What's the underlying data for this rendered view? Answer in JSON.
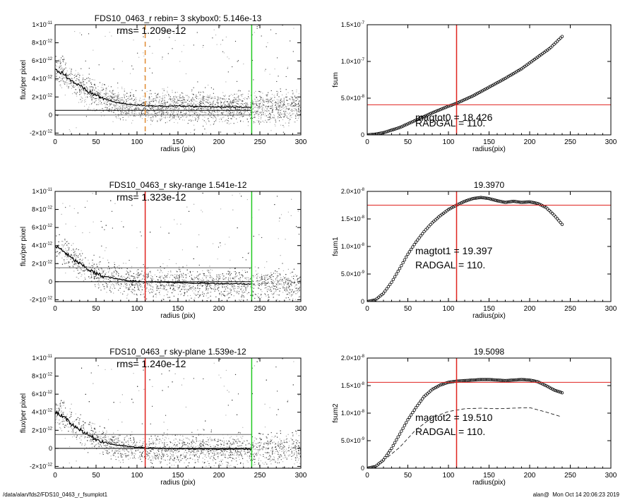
{
  "footer": {
    "path": "/data/alan/fds2/FDS10_0463_r_fsumplot1",
    "user": "alan@",
    "timestamp": "Mon Oct 14 20:06:23 2019"
  },
  "colors": {
    "background": "#ffffff",
    "points_dark": "#333333",
    "points_light": "#aaaaaa",
    "profile": "#000000",
    "red_line": "#e0231f",
    "green_line": "#22c922",
    "orange_dashed": "#e08a30"
  },
  "chart_data": [
    {
      "id": "profile-1",
      "type": "scatter",
      "title": "FDS10_0463_r rebin= 3    skybox0:  5.146e-13",
      "annotation": "rms= 1.209e-12",
      "xlabel": "radius (pix)",
      "ylabel": "flux/per pixel",
      "xlim": [
        0,
        300
      ],
      "ylim": [
        -2.2e-12,
        1e-11
      ],
      "xticks": [
        0,
        50,
        100,
        150,
        200,
        250,
        300
      ],
      "yticks": [
        -2e-12,
        0,
        2e-12,
        4e-12,
        6e-12,
        8e-12,
        1e-11
      ],
      "ytick_labels": [
        [
          "-2",
          "×10",
          "-12"
        ],
        [
          "0"
        ],
        [
          "2",
          "×10",
          "-12"
        ],
        [
          "4",
          "×10",
          "-12"
        ],
        [
          "6",
          "×10",
          "-12"
        ],
        [
          "8",
          "×10",
          "-12"
        ],
        [
          "1",
          "×10",
          "-11"
        ]
      ],
      "profile": {
        "x": [
          0,
          5,
          10,
          20,
          30,
          40,
          50,
          60,
          70,
          80,
          90,
          100,
          110,
          130,
          150,
          170,
          200,
          240
        ],
        "y": [
          5e-12,
          4.8e-12,
          4.6e-12,
          3.8e-12,
          3.2e-12,
          2.6e-12,
          2.2e-12,
          1.8e-12,
          1.5e-12,
          1.3e-12,
          1.2e-12,
          1.1e-12,
          1.05e-12,
          1e-12,
          1e-12,
          9.5e-13,
          9e-13,
          8.5e-13
        ]
      },
      "hlines": [
        {
          "y": 0,
          "color": "gray"
        },
        {
          "y": 5.146e-13,
          "color": "black"
        }
      ],
      "vlines": [
        {
          "x": 110,
          "style": "dashed",
          "color": "orange"
        },
        {
          "x": 240,
          "style": "solid",
          "color": "green"
        }
      ],
      "scatter_center": 1e-12,
      "scatter_spread": 1.6e-12
    },
    {
      "id": "fsum",
      "type": "scatter",
      "title": "",
      "xlabel": "radius(pix)",
      "ylabel": "fsum",
      "xlim": [
        0,
        300
      ],
      "ylim": [
        0,
        1.5e-07
      ],
      "xticks": [
        0,
        50,
        100,
        150,
        200,
        250,
        300
      ],
      "yticks": [
        0,
        5e-08,
        1e-07,
        1.5e-07
      ],
      "ytick_labels": [
        [
          "0"
        ],
        [
          "5.0",
          "×10",
          "-8"
        ],
        [
          "1.0",
          "×10",
          "-7"
        ],
        [
          "1.5",
          "×10",
          "-7"
        ]
      ],
      "curve": {
        "x": [
          0,
          10,
          20,
          40,
          60,
          80,
          100,
          110,
          130,
          150,
          170,
          190,
          210,
          225,
          240
        ],
        "y": [
          0,
          1e-09,
          3e-09,
          1e-08,
          2e-08,
          3e-08,
          3.9e-08,
          4.3e-08,
          5.3e-08,
          6.5e-08,
          7.7e-08,
          9e-08,
          1.06e-07,
          1.18e-07,
          1.34e-07
        ]
      },
      "hlines": [
        {
          "y": 4.1e-08,
          "color": "red"
        }
      ],
      "vlines": [
        {
          "x": 110,
          "style": "solid",
          "color": "red"
        }
      ],
      "annotations": [
        "magtot0 =  18.426",
        "RADGAL =    110."
      ]
    },
    {
      "id": "profile-2",
      "type": "scatter",
      "title": "FDS10_0463_r sky-range  1.541e-12",
      "annotation": "rms= 1.323e-12",
      "xlabel": "radius (pix)",
      "ylabel": "flux/per pixel",
      "xlim": [
        0,
        300
      ],
      "ylim": [
        -2.2e-12,
        1e-11
      ],
      "xticks": [
        0,
        50,
        100,
        150,
        200,
        250,
        300
      ],
      "yticks": [
        -2e-12,
        0,
        2e-12,
        4e-12,
        6e-12,
        8e-12,
        1e-11
      ],
      "ytick_labels": [
        [
          "-2",
          "×10",
          "-12"
        ],
        [
          "0"
        ],
        [
          "2",
          "×10",
          "-12"
        ],
        [
          "4",
          "×10",
          "-12"
        ],
        [
          "6",
          "×10",
          "-12"
        ],
        [
          "8",
          "×10",
          "-12"
        ],
        [
          "1",
          "×10",
          "-11"
        ]
      ],
      "profile": {
        "x": [
          0,
          5,
          10,
          20,
          30,
          40,
          50,
          60,
          70,
          80,
          90,
          100,
          110,
          130,
          150,
          170,
          200,
          240
        ],
        "y": [
          3.9e-12,
          3.7e-12,
          3.4e-12,
          2.6e-12,
          2e-12,
          1.4e-12,
          9e-13,
          6e-13,
          4e-13,
          2.5e-13,
          1e-13,
          5e-14,
          0.0,
          -5e-14,
          -1e-13,
          -1.5e-13,
          -2e-13,
          -2.5e-13
        ]
      },
      "hlines": [
        {
          "y": 0,
          "color": "black"
        },
        {
          "y": 1.541e-12,
          "color": "gray"
        }
      ],
      "vlines": [
        {
          "x": 110,
          "style": "solid",
          "color": "red"
        },
        {
          "x": 240,
          "style": "solid",
          "color": "green"
        }
      ],
      "scatter_center": 0.0,
      "scatter_spread": 1.6e-12
    },
    {
      "id": "fsum1",
      "type": "scatter",
      "title": "19.3970",
      "xlabel": "radius(pix)",
      "ylabel": "fsum1",
      "xlim": [
        0,
        300
      ],
      "ylim": [
        0,
        2e-08
      ],
      "xticks": [
        0,
        50,
        100,
        150,
        200,
        250,
        300
      ],
      "yticks": [
        0,
        5e-09,
        1e-08,
        1.5e-08,
        2e-08
      ],
      "ytick_labels": [
        [
          "0"
        ],
        [
          "5.0",
          "×10",
          "-9"
        ],
        [
          "1.0",
          "×10",
          "-8"
        ],
        [
          "1.5",
          "×10",
          "-8"
        ],
        [
          "2.0",
          "×10",
          "-8"
        ]
      ],
      "curve": {
        "x": [
          0,
          10,
          20,
          30,
          40,
          50,
          60,
          70,
          80,
          90,
          100,
          110,
          120,
          130,
          140,
          150,
          160,
          170,
          180,
          190,
          200,
          210,
          220,
          230,
          240
        ],
        "y": [
          0,
          3e-10,
          1.5e-09,
          3.5e-09,
          6e-09,
          8.6e-09,
          1.08e-08,
          1.27e-08,
          1.43e-08,
          1.56e-08,
          1.67e-08,
          1.75e-08,
          1.82e-08,
          1.87e-08,
          1.89e-08,
          1.87e-08,
          1.83e-08,
          1.8e-08,
          1.82e-08,
          1.8e-08,
          1.81e-08,
          1.78e-08,
          1.71e-08,
          1.57e-08,
          1.4e-08
        ]
      },
      "hlines": [
        {
          "y": 1.75e-08,
          "color": "red"
        }
      ],
      "vlines": [
        {
          "x": 110,
          "style": "solid",
          "color": "red"
        }
      ],
      "annotations": [
        "magtot1 =  19.397",
        "RADGAL =    110."
      ]
    },
    {
      "id": "profile-3",
      "type": "scatter",
      "title": "FDS10_0463_r sky-plane  1.539e-12",
      "annotation": "rms= 1.240e-12",
      "xlabel": "radius (pix)",
      "ylabel": "flux/per pixel",
      "xlim": [
        0,
        300
      ],
      "ylim": [
        -2.2e-12,
        1e-11
      ],
      "xticks": [
        0,
        50,
        100,
        150,
        200,
        250,
        300
      ],
      "yticks": [
        -2e-12,
        0,
        2e-12,
        4e-12,
        6e-12,
        8e-12,
        1e-11
      ],
      "ytick_labels": [
        [
          "-2",
          "×10",
          "-12"
        ],
        [
          "0"
        ],
        [
          "2",
          "×10",
          "-12"
        ],
        [
          "4",
          "×10",
          "-12"
        ],
        [
          "6",
          "×10",
          "-12"
        ],
        [
          "8",
          "×10",
          "-12"
        ],
        [
          "1",
          "×10",
          "-11"
        ]
      ],
      "profile": {
        "x": [
          0,
          5,
          10,
          20,
          30,
          40,
          50,
          60,
          70,
          80,
          90,
          100,
          110,
          130,
          150,
          170,
          200,
          240
        ],
        "y": [
          4e-12,
          3.8e-12,
          3.5e-12,
          2.7e-12,
          2.1e-12,
          1.5e-12,
          1e-12,
          7e-13,
          4.5e-13,
          3e-13,
          2e-13,
          1e-13,
          5e-14,
          0.0,
          -5e-14,
          -5e-14,
          -8e-14,
          -1e-13
        ]
      },
      "hlines": [
        {
          "y": 0,
          "color": "black"
        },
        {
          "y": 1.539e-12,
          "color": "gray"
        }
      ],
      "vlines": [
        {
          "x": 110,
          "style": "solid",
          "color": "red"
        },
        {
          "x": 240,
          "style": "solid",
          "color": "green"
        }
      ],
      "scatter_center": 0.0,
      "scatter_spread": 1.6e-12
    },
    {
      "id": "fsum2",
      "type": "scatter",
      "title": "19.5098",
      "xlabel": "radius(pix)",
      "ylabel": "fsum2",
      "xlim": [
        0,
        300
      ],
      "ylim": [
        0,
        2e-08
      ],
      "xticks": [
        0,
        50,
        100,
        150,
        200,
        250,
        300
      ],
      "yticks": [
        0,
        5e-09,
        1e-08,
        1.5e-08,
        2e-08
      ],
      "ytick_labels": [
        [
          "0"
        ],
        [
          "5.0",
          "×10",
          "-9"
        ],
        [
          "1.0",
          "×10",
          "-8"
        ],
        [
          "1.5",
          "×10",
          "-8"
        ],
        [
          "2.0",
          "×10",
          "-8"
        ]
      ],
      "curve": {
        "x": [
          0,
          10,
          20,
          30,
          40,
          50,
          60,
          70,
          80,
          90,
          100,
          110,
          120,
          130,
          140,
          150,
          160,
          170,
          180,
          190,
          200,
          210,
          220,
          230,
          240
        ],
        "y": [
          0,
          3e-10,
          1.5e-09,
          3.6e-09,
          6.2e-09,
          8.8e-09,
          1.1e-08,
          1.3e-08,
          1.43e-08,
          1.51e-08,
          1.56e-08,
          1.58e-08,
          1.59e-08,
          1.6e-08,
          1.61e-08,
          1.61e-08,
          1.6e-08,
          1.59e-08,
          1.6e-08,
          1.61e-08,
          1.6e-08,
          1.57e-08,
          1.5e-08,
          1.42e-08,
          1.37e-08
        ]
      },
      "dashed_curve": {
        "x": [
          25,
          40,
          60,
          80,
          100,
          120,
          140,
          160,
          180,
          200,
          220,
          240
        ],
        "y": [
          2e-09,
          3.8e-09,
          7e-09,
          9.2e-09,
          1.03e-08,
          1.08e-08,
          1.09e-08,
          1.08e-08,
          1.09e-08,
          1.1e-08,
          1.02e-08,
          9.3e-09
        ]
      },
      "hlines": [
        {
          "y": 1.56e-08,
          "color": "red"
        }
      ],
      "vlines": [
        {
          "x": 110,
          "style": "solid",
          "color": "red"
        }
      ],
      "annotations": [
        "magtot2 =  19.510",
        "RADGAL =    110."
      ]
    }
  ]
}
